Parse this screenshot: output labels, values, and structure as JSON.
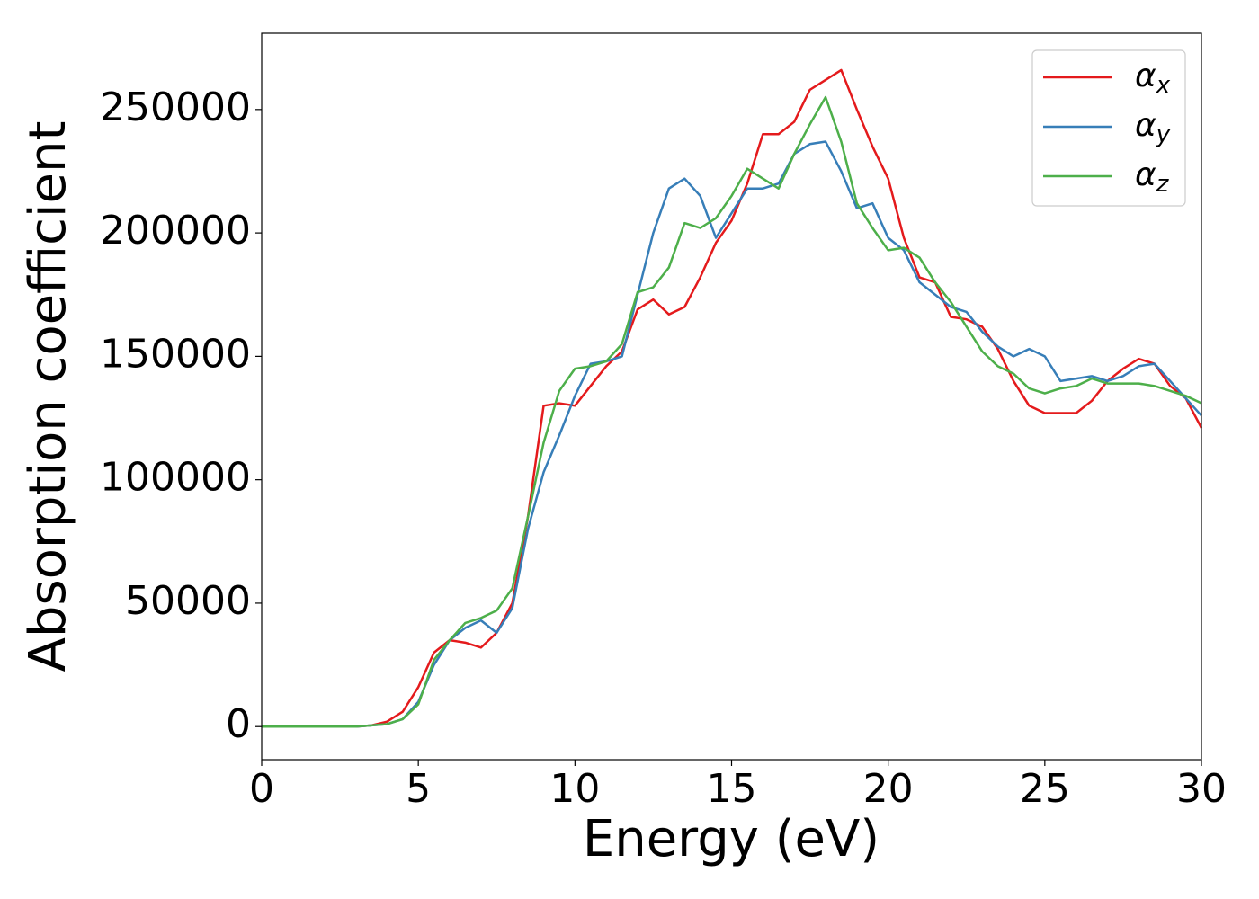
{
  "chart_data": {
    "type": "line",
    "x_label": "Energy (eV)",
    "y_label": "Absorption coefficient",
    "x": [
      0,
      0.5,
      1,
      1.5,
      2,
      2.5,
      3,
      3.5,
      4,
      4.5,
      5,
      5.5,
      6,
      6.5,
      7,
      7.5,
      8,
      8.5,
      9,
      9.5,
      10,
      10.5,
      11,
      11.5,
      12,
      12.5,
      13,
      13.5,
      14,
      14.5,
      15,
      15.5,
      16,
      16.5,
      17,
      17.5,
      18,
      18.5,
      19,
      19.5,
      20,
      20.5,
      21,
      21.5,
      22,
      22.5,
      23,
      23.5,
      24,
      24.5,
      25,
      25.5,
      26,
      26.5,
      27,
      27.5,
      28,
      28.5,
      29,
      29.5,
      30
    ],
    "series": [
      {
        "name": "αx",
        "color": "#e41a1c",
        "values": [
          0,
          0,
          0,
          0,
          0,
          0,
          0,
          500,
          2000,
          6000,
          16000,
          30000,
          35000,
          34000,
          32000,
          38000,
          50000,
          85000,
          130000,
          131000,
          130000,
          138000,
          146000,
          152000,
          169000,
          173000,
          167000,
          170000,
          182000,
          196000,
          205000,
          220000,
          240000,
          240000,
          245000,
          258000,
          262000,
          266000,
          250000,
          235000,
          222000,
          198000,
          182000,
          180000,
          166000,
          165000,
          162000,
          153000,
          140000,
          130000,
          127000,
          127000,
          127000,
          132000,
          140000,
          145000,
          149000,
          147000,
          138000,
          133000,
          121000
        ]
      },
      {
        "name": "αy",
        "color": "#377eb8",
        "values": [
          0,
          0,
          0,
          0,
          0,
          0,
          0,
          500,
          1000,
          3000,
          10000,
          25000,
          35000,
          40000,
          43000,
          38000,
          48000,
          80000,
          103000,
          118000,
          134000,
          147000,
          148000,
          150000,
          175000,
          200000,
          218000,
          222000,
          215000,
          198000,
          208000,
          218000,
          218000,
          220000,
          232000,
          236000,
          237000,
          225000,
          210000,
          212000,
          198000,
          193000,
          180000,
          175000,
          170000,
          168000,
          160000,
          154000,
          150000,
          153000,
          150000,
          140000,
          141000,
          142000,
          140000,
          142000,
          146000,
          147000,
          140000,
          133000,
          126000
        ]
      },
      {
        "name": "αz",
        "color": "#4daf4a",
        "values": [
          0,
          0,
          0,
          0,
          0,
          0,
          0,
          500,
          1000,
          3000,
          9000,
          27000,
          35000,
          42000,
          44000,
          47000,
          56000,
          85000,
          115000,
          136000,
          145000,
          146000,
          148000,
          155000,
          176000,
          178000,
          186000,
          204000,
          202000,
          206000,
          215000,
          226000,
          222000,
          218000,
          232000,
          244000,
          255000,
          237000,
          212000,
          202000,
          193000,
          194000,
          190000,
          180000,
          172000,
          162000,
          152000,
          146000,
          143000,
          137000,
          135000,
          137000,
          138000,
          141000,
          139000,
          139000,
          139000,
          138000,
          136000,
          134000,
          131000
        ]
      }
    ],
    "xlim": [
      0,
      30
    ],
    "xticks": [
      0,
      5,
      10,
      15,
      20,
      25,
      30
    ],
    "ylim": [
      -13400,
      280900
    ],
    "yticks": [
      0,
      50000,
      100000,
      150000,
      200000,
      250000
    ],
    "legend": "upper right"
  }
}
